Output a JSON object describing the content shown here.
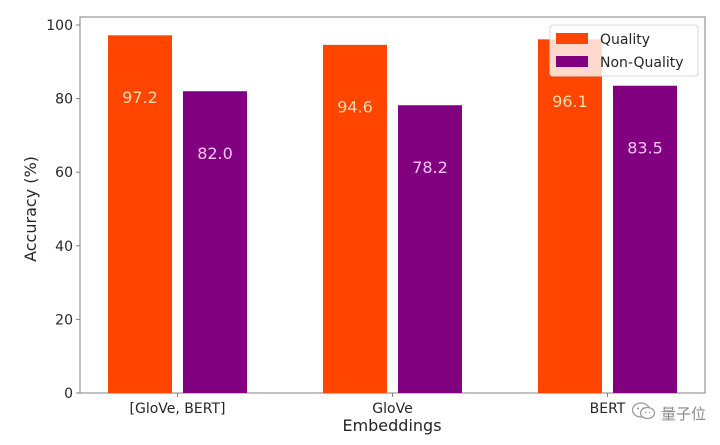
{
  "chart_data": {
    "type": "bar",
    "title": "",
    "xlabel": "Embeddings",
    "ylabel": "Accuracy (%)",
    "categories": [
      "[GloVe, BERT]",
      "GloVe",
      "BERT"
    ],
    "series": [
      {
        "name": "Quality",
        "color": "#ff4500",
        "label_color": "#ffd8b0",
        "values": [
          97.2,
          94.6,
          96.1
        ]
      },
      {
        "name": "Non-Quality",
        "color": "#800080",
        "label_color": "#f7c6f7",
        "values": [
          82.0,
          78.2,
          83.5
        ]
      }
    ],
    "ylim": [
      0,
      102
    ],
    "yticks": [
      0,
      20,
      40,
      60,
      80,
      100
    ],
    "legend_position": "top-right",
    "grid": false,
    "data_labels": true
  },
  "watermark": {
    "icon": "wechat-icon",
    "text": "量子位"
  }
}
